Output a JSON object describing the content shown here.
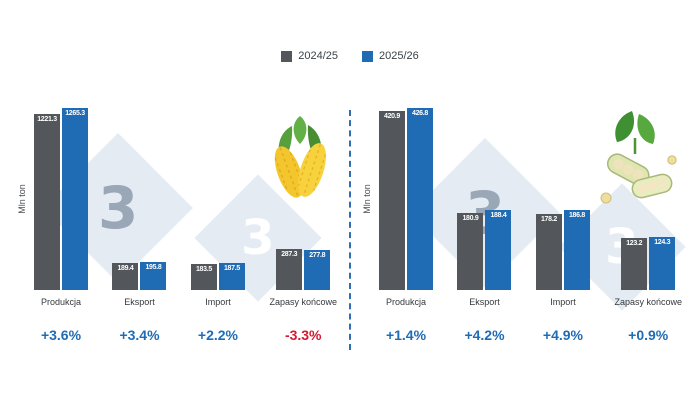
{
  "legend": {
    "items": [
      {
        "label": "2024/25",
        "color": "#53575c"
      },
      {
        "label": "2025/26",
        "color": "#1f6cb5"
      }
    ]
  },
  "watermark": {
    "glyph": "3"
  },
  "chart_data": [
    {
      "type": "bar",
      "commodity": "corn",
      "ylabel": "Mln ton",
      "categories": [
        "Produkcja",
        "Eksport",
        "Import",
        "Zapasy końcowe"
      ],
      "series": [
        {
          "name": "2024/25",
          "color": "#53575c",
          "values": [
            1221.3,
            189.4,
            183.5,
            287.3
          ]
        },
        {
          "name": "2025/26",
          "color": "#1f6cb5",
          "values": [
            1265.3,
            195.8,
            187.5,
            277.8
          ]
        }
      ],
      "deltas": [
        {
          "text": "+3.6%",
          "color": "#1f6cb5"
        },
        {
          "text": "+3.4%",
          "color": "#1f6cb5"
        },
        {
          "text": "+2.2%",
          "color": "#1f6cb5"
        },
        {
          "text": "-3.3%",
          "color": "#d6192e"
        }
      ],
      "ylim": [
        0,
        1265.3
      ],
      "legend_position": "top",
      "grid": false
    },
    {
      "type": "bar",
      "commodity": "soybean",
      "ylabel": "Mln ton",
      "categories": [
        "Produkcja",
        "Eksport",
        "Import",
        "Zapasy końcowe"
      ],
      "series": [
        {
          "name": "2024/25",
          "color": "#53575c",
          "values": [
            420.9,
            180.9,
            178.2,
            123.2
          ]
        },
        {
          "name": "2025/26",
          "color": "#1f6cb5",
          "values": [
            426.8,
            188.4,
            186.8,
            124.3
          ]
        }
      ],
      "deltas": [
        {
          "text": "+1.4%",
          "color": "#1f6cb5"
        },
        {
          "text": "+4.2%",
          "color": "#1f6cb5"
        },
        {
          "text": "+4.9%",
          "color": "#1f6cb5"
        },
        {
          "text": "+0.9%",
          "color": "#1f6cb5"
        }
      ],
      "ylim": [
        0,
        426.8
      ],
      "legend_position": "top",
      "grid": false
    }
  ]
}
